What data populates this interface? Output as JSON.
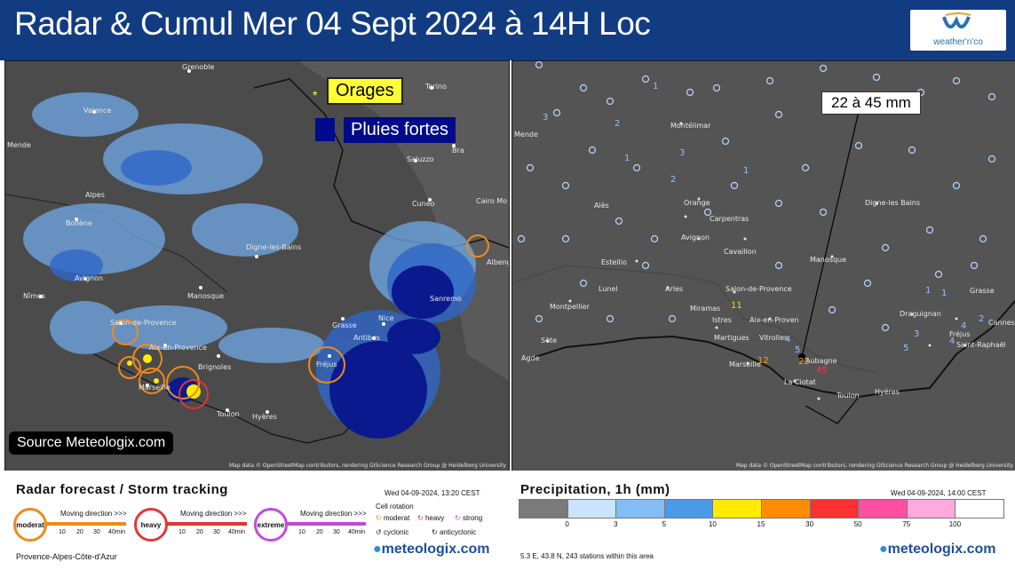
{
  "header": {
    "title": "Radar & Cumul Mer 04 Sept 2024 à 14H Loc",
    "brand_name": "weather'n'co"
  },
  "radar_map": {
    "legend_orages": "Orages",
    "legend_pluies": "Pluies fortes",
    "source": "Source Meteologix.com",
    "attribution": "Map data © OpenStreetMap contributors, rendering GIScience Research Group @ Heidelberg University",
    "cities": [
      "Grenoble",
      "Torino",
      "Valence",
      "Bra",
      "Saluzzo",
      "Mende",
      "Cuneo",
      "Cairo Mo",
      "Alpes",
      "Bollène",
      "Digne-les-Bains",
      "Albeng",
      "Nîmes",
      "Avignon",
      "Manosque",
      "Sanremo",
      "Salon-de-Provence",
      "Aix-en-Provence",
      "Grasse",
      "Nice",
      "Antibes",
      "Brignoles",
      "Fréjus",
      "Marseille",
      "Toulon",
      "Hyères"
    ]
  },
  "precip_map": {
    "annotation": "22 à 45 mm",
    "attribution": "Map data © OpenStreetMap contributors, rendering GIScience Research Group @ Heidelberg University",
    "cities": [
      "Mende",
      "Montélimar",
      "Alès",
      "Orange",
      "Carpentras",
      "Digne-les Bains",
      "Avignon",
      "Cavaillon",
      "Manosque",
      "Estellio",
      "Lunel",
      "Arles",
      "Salon-de-Provence",
      "Montpellier",
      "Miramas",
      "Istres",
      "Aix-en-Proven",
      "Grasse",
      "Draguignan",
      "Martigues",
      "Vitrolles",
      "Fréjus",
      "Saint-Raphaël",
      "Sète",
      "Agde",
      "Marseille",
      "Aubagne",
      "La Ciotat",
      "Toulon",
      "Hyères",
      "Cannes"
    ],
    "station_values": [
      "0",
      "1",
      "2",
      "3",
      "4",
      "5",
      "11",
      "12",
      "22",
      "45"
    ]
  },
  "footer_left": {
    "title": "Radar forecast / Storm tracking",
    "timestamp": "Wed 04-09-2024, 13:20 CEST",
    "moving_direction": "Moving direction >>>",
    "categories": [
      {
        "label": "moderat",
        "color": "#f08a1a"
      },
      {
        "label": "heavy",
        "color": "#e23636"
      },
      {
        "label": "extreme",
        "color": "#c24ad8"
      }
    ],
    "ticks": [
      "10",
      "20",
      "30",
      "40min"
    ],
    "cell_rotation_title": "Cell rotation",
    "cell_rotation": [
      "moderat",
      "heavy",
      "strong",
      "cyclonic",
      "anticyclonic"
    ],
    "region": "Provence-Alpes-Côte-d'Azur",
    "logo": "meteologix.com"
  },
  "footer_right": {
    "title": "Precipitation, 1h (mm)",
    "timestamp": "Wed 04-09-2024, 14:00 CEST",
    "scale_labels": [
      "0",
      "3",
      "5",
      "10",
      "15",
      "30",
      "50",
      "75",
      "100"
    ],
    "scale_colors": [
      "#7a7a7a",
      "#c8e4ff",
      "#84bcf5",
      "#4b9ae8",
      "#ffea00",
      "#ff8c00",
      "#ff3030",
      "#ff4fa0",
      "#ffaadd",
      "#ffffff"
    ],
    "station_info": "5.3 E, 43.8 N, 243 stations within this area",
    "logo": "meteologix.com"
  }
}
